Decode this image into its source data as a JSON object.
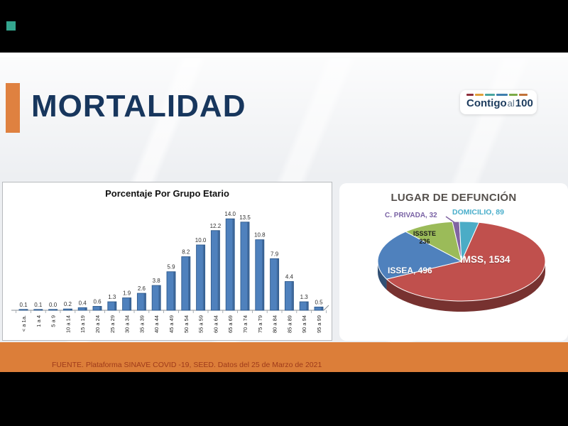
{
  "window": {
    "background_color": "#000000",
    "indicator_square_color": "#33a58e"
  },
  "header": {
    "title": "MORTALIDAD",
    "title_color": "#17365d",
    "accent_color": "#df8140"
  },
  "logo": {
    "word1": "Contigo",
    "word2": "al",
    "word3": "100"
  },
  "footer": {
    "source_text": "FUENTE. Plataforma SINAVE COVID -19, SEED. Datos del 25 de Marzo de 2021",
    "band_color": "#dc7e39",
    "text_color": "#9e3a1a"
  },
  "chart_data": [
    {
      "type": "bar",
      "title": "Porcentaje Por Grupo Etario",
      "categories": [
        "< a 1a.",
        "1 a 4",
        "5 a 9",
        "10 a 14",
        "15 a 19",
        "20 a 24",
        "25 a 29",
        "30 a 34",
        "35 a 39",
        "40 a 44",
        "45 a 49",
        "50 a 54",
        "55 a 59",
        "60 a 64",
        "65 a 69",
        "70 a 74",
        "75 a 79",
        "80 a 84",
        "85 a 89",
        "90 a 94",
        "95 a 99"
      ],
      "values": [
        0.1,
        0.1,
        0.0,
        0.2,
        0.4,
        0.6,
        1.3,
        1.9,
        2.6,
        3.8,
        5.9,
        8.2,
        10.0,
        12.2,
        14.0,
        13.5,
        10.8,
        7.9,
        4.4,
        1.3,
        0.5
      ],
      "xlabel": "",
      "ylabel": "",
      "ylim": [
        0,
        15
      ],
      "grid": false,
      "legend": false,
      "data_labels": true,
      "bar_color": "#4f81bd",
      "bar_edge_color": "#2f5b8e"
    },
    {
      "type": "pie",
      "style": "3d",
      "title": "LUGAR DE DEFUNCIÓN",
      "labels": [
        "IMSS",
        "ISSEA",
        "ISSSTE",
        "C. PRIVADA",
        "DOMICILIO"
      ],
      "values": [
        1534,
        496,
        236,
        32,
        89
      ],
      "colors": [
        "#c0504d",
        "#4f81bd",
        "#9bbb59",
        "#8064a2",
        "#4bacc6"
      ],
      "start_angle_deg": 12,
      "legend": false,
      "display_labels": {
        "imss": "IMSS, 1534",
        "issea": "ISSEA, 496",
        "issste_line1": "ISSSTE",
        "issste_line2": "236",
        "privada": "C. PRIVADA, 32",
        "domicilio": "DOMICILIO, 89"
      }
    }
  ]
}
